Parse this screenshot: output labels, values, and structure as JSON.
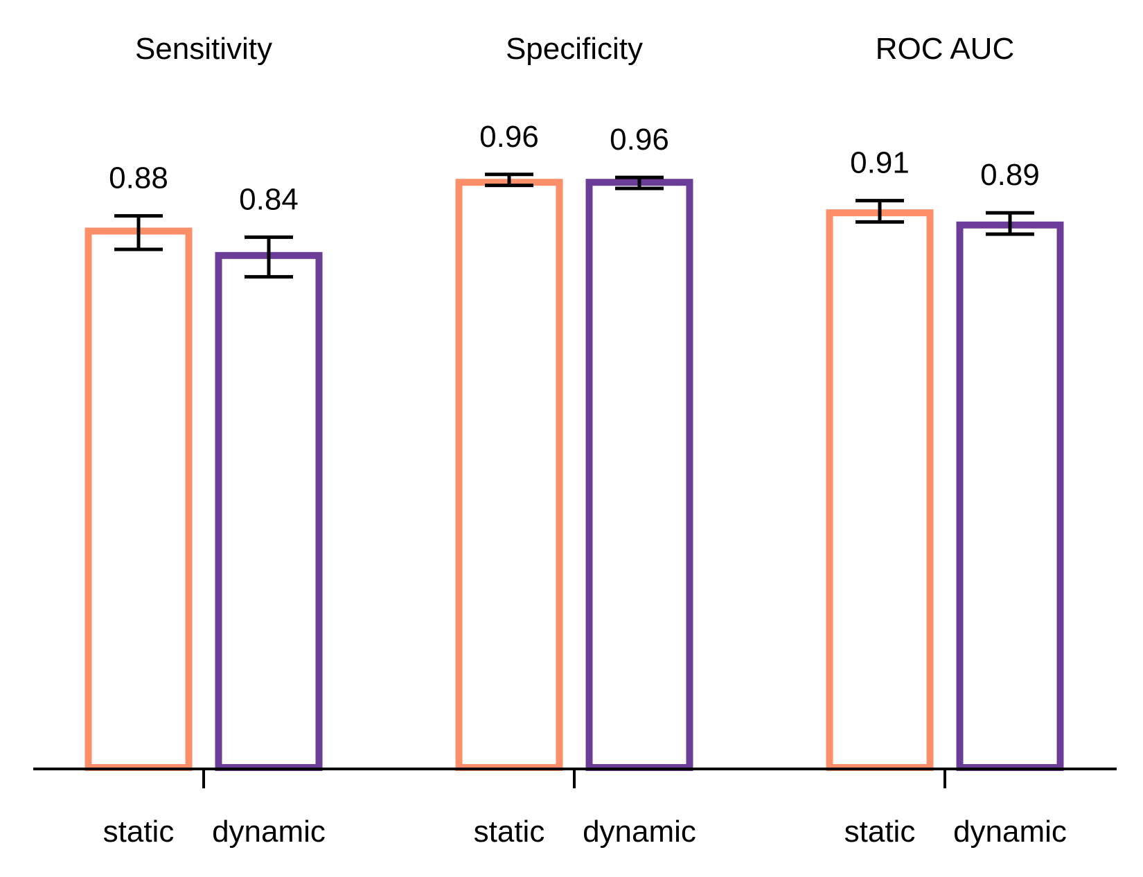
{
  "colors": {
    "static": "#FC8F69",
    "dynamic": "#6B3D99",
    "axis": "#000000",
    "errorbar": "#000000"
  },
  "chart_data": {
    "type": "bar",
    "ylim": [
      0,
      1
    ],
    "grid": false,
    "legend": "none",
    "categories": [
      "static",
      "dynamic"
    ],
    "panels": [
      {
        "title": "Sensitivity",
        "bars": [
          {
            "category": "static",
            "value": 0.88,
            "label": "0.88",
            "err_low": 0.85,
            "err_high": 0.905
          },
          {
            "category": "dynamic",
            "value": 0.84,
            "label": "0.84",
            "err_low": 0.805,
            "err_high": 0.87
          }
        ]
      },
      {
        "title": "Specificity",
        "bars": [
          {
            "category": "static",
            "value": 0.96,
            "label": "0.96",
            "err_low": 0.955,
            "err_high": 0.973
          },
          {
            "category": "dynamic",
            "value": 0.96,
            "label": "0.96",
            "err_low": 0.95,
            "err_high": 0.968
          }
        ]
      },
      {
        "title": "ROC AUC",
        "bars": [
          {
            "category": "static",
            "value": 0.91,
            "label": "0.91",
            "err_low": 0.895,
            "err_high": 0.93
          },
          {
            "category": "dynamic",
            "value": 0.89,
            "label": "0.89",
            "err_low": 0.875,
            "err_high": 0.91
          }
        ]
      }
    ]
  }
}
